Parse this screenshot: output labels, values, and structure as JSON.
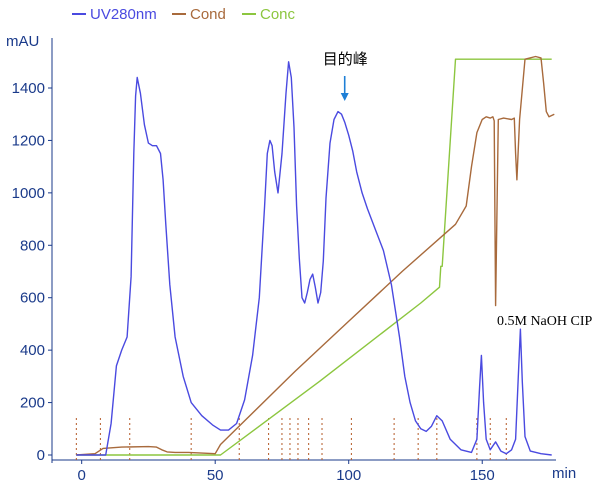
{
  "chart_data": {
    "type": "line",
    "ylabel": "mAU",
    "xlabel": "min",
    "xlim": [
      -4,
      178
    ],
    "ylim": [
      -30,
      1560
    ],
    "x_ticks": [
      0,
      50,
      100,
      150
    ],
    "y_ticks": [
      0,
      200,
      400,
      600,
      800,
      1000,
      1200,
      1400
    ],
    "grid": false,
    "legend_position": "top-left",
    "colors": {
      "uv": "#4a4ae0",
      "cond": "#a86a3c",
      "conc": "#8cc63f",
      "axis": "#1a3a8a",
      "arrow": "#1e7fd6",
      "marker": "#b45a28"
    },
    "series": [
      {
        "name": "UV280nm",
        "x": [
          -2,
          5,
          9,
          11,
          13,
          15,
          17,
          18.5,
          19.5,
          20.2,
          20.8,
          22,
          23.5,
          25,
          26.5,
          28,
          29.5,
          30.5,
          31.5,
          33,
          35,
          38,
          41,
          45,
          49,
          52,
          55,
          58,
          61,
          64,
          66.5,
          68.5,
          69.5,
          70.5,
          71.3,
          72.3,
          73.5,
          75,
          76.5,
          77.5,
          78.5,
          79.5,
          80.5,
          81.5,
          82.5,
          83.5,
          84.5,
          85.5,
          86.5,
          87.5,
          88.5,
          89.5,
          90.5,
          91.5,
          93,
          94.5,
          96,
          97.3,
          98.5,
          100,
          101.5,
          103,
          105,
          107,
          110,
          113,
          116,
          119,
          121,
          123,
          125,
          127,
          129,
          131,
          133,
          135,
          138,
          142,
          146,
          148,
          149,
          149.7,
          150.5,
          151.5,
          153,
          155,
          157,
          159,
          161,
          162.5,
          163.5,
          164.3,
          165,
          166,
          168,
          172,
          176
        ],
        "y": [
          0,
          0,
          0,
          120,
          340,
          400,
          450,
          680,
          1150,
          1370,
          1440,
          1380,
          1260,
          1190,
          1180,
          1180,
          1150,
          1050,
          880,
          650,
          450,
          300,
          200,
          150,
          115,
          95,
          95,
          120,
          210,
          380,
          600,
          950,
          1150,
          1200,
          1180,
          1080,
          1000,
          1150,
          1380,
          1500,
          1440,
          1250,
          950,
          750,
          600,
          580,
          620,
          670,
          690,
          640,
          580,
          620,
          740,
          980,
          1190,
          1280,
          1310,
          1300,
          1270,
          1220,
          1160,
          1080,
          1000,
          940,
          860,
          780,
          650,
          450,
          300,
          200,
          130,
          100,
          90,
          110,
          150,
          130,
          60,
          20,
          10,
          60,
          260,
          380,
          200,
          60,
          20,
          50,
          15,
          5,
          20,
          60,
          300,
          480,
          280,
          70,
          15,
          5,
          0
        ]
      },
      {
        "name": "Cond",
        "x": [
          -2,
          5,
          8,
          15,
          25,
          28,
          30,
          32,
          35,
          40,
          44,
          48,
          50,
          52,
          60,
          80,
          100,
          120,
          140,
          144,
          146,
          148,
          150,
          151.5,
          153,
          154,
          154.5,
          155,
          156,
          158,
          161,
          162,
          162.5,
          163,
          164,
          166,
          170,
          172,
          173,
          174,
          175,
          177
        ],
        "y": [
          0,
          5,
          25,
          30,
          32,
          30,
          20,
          12,
          10,
          10,
          8,
          6,
          5,
          40,
          120,
          320,
          510,
          700,
          880,
          950,
          1100,
          1230,
          1280,
          1290,
          1285,
          1290,
          1275,
          570,
          1280,
          1285,
          1280,
          1285,
          1150,
          1050,
          1280,
          1510,
          1520,
          1515,
          1420,
          1310,
          1290,
          1300
        ]
      },
      {
        "name": "Conc",
        "x": [
          -2,
          40,
          49,
          52,
          89,
          127,
          134,
          134.5,
          135,
          140,
          170,
          176
        ],
        "y": [
          0,
          0,
          0,
          0,
          280,
          580,
          640,
          720,
          720,
          1510,
          1510,
          1510
        ]
      }
    ],
    "fraction_markers": [
      -2,
      7,
      18,
      41,
      59,
      70,
      75,
      78,
      81,
      85,
      90,
      101,
      117,
      126,
      133,
      148,
      153,
      159
    ],
    "annotations": [
      {
        "text": "目的峰",
        "x": 98.5,
        "y": 1320
      },
      {
        "text": "0.5M NaOH CIP",
        "x": 155.5,
        "y": 500
      }
    ]
  }
}
